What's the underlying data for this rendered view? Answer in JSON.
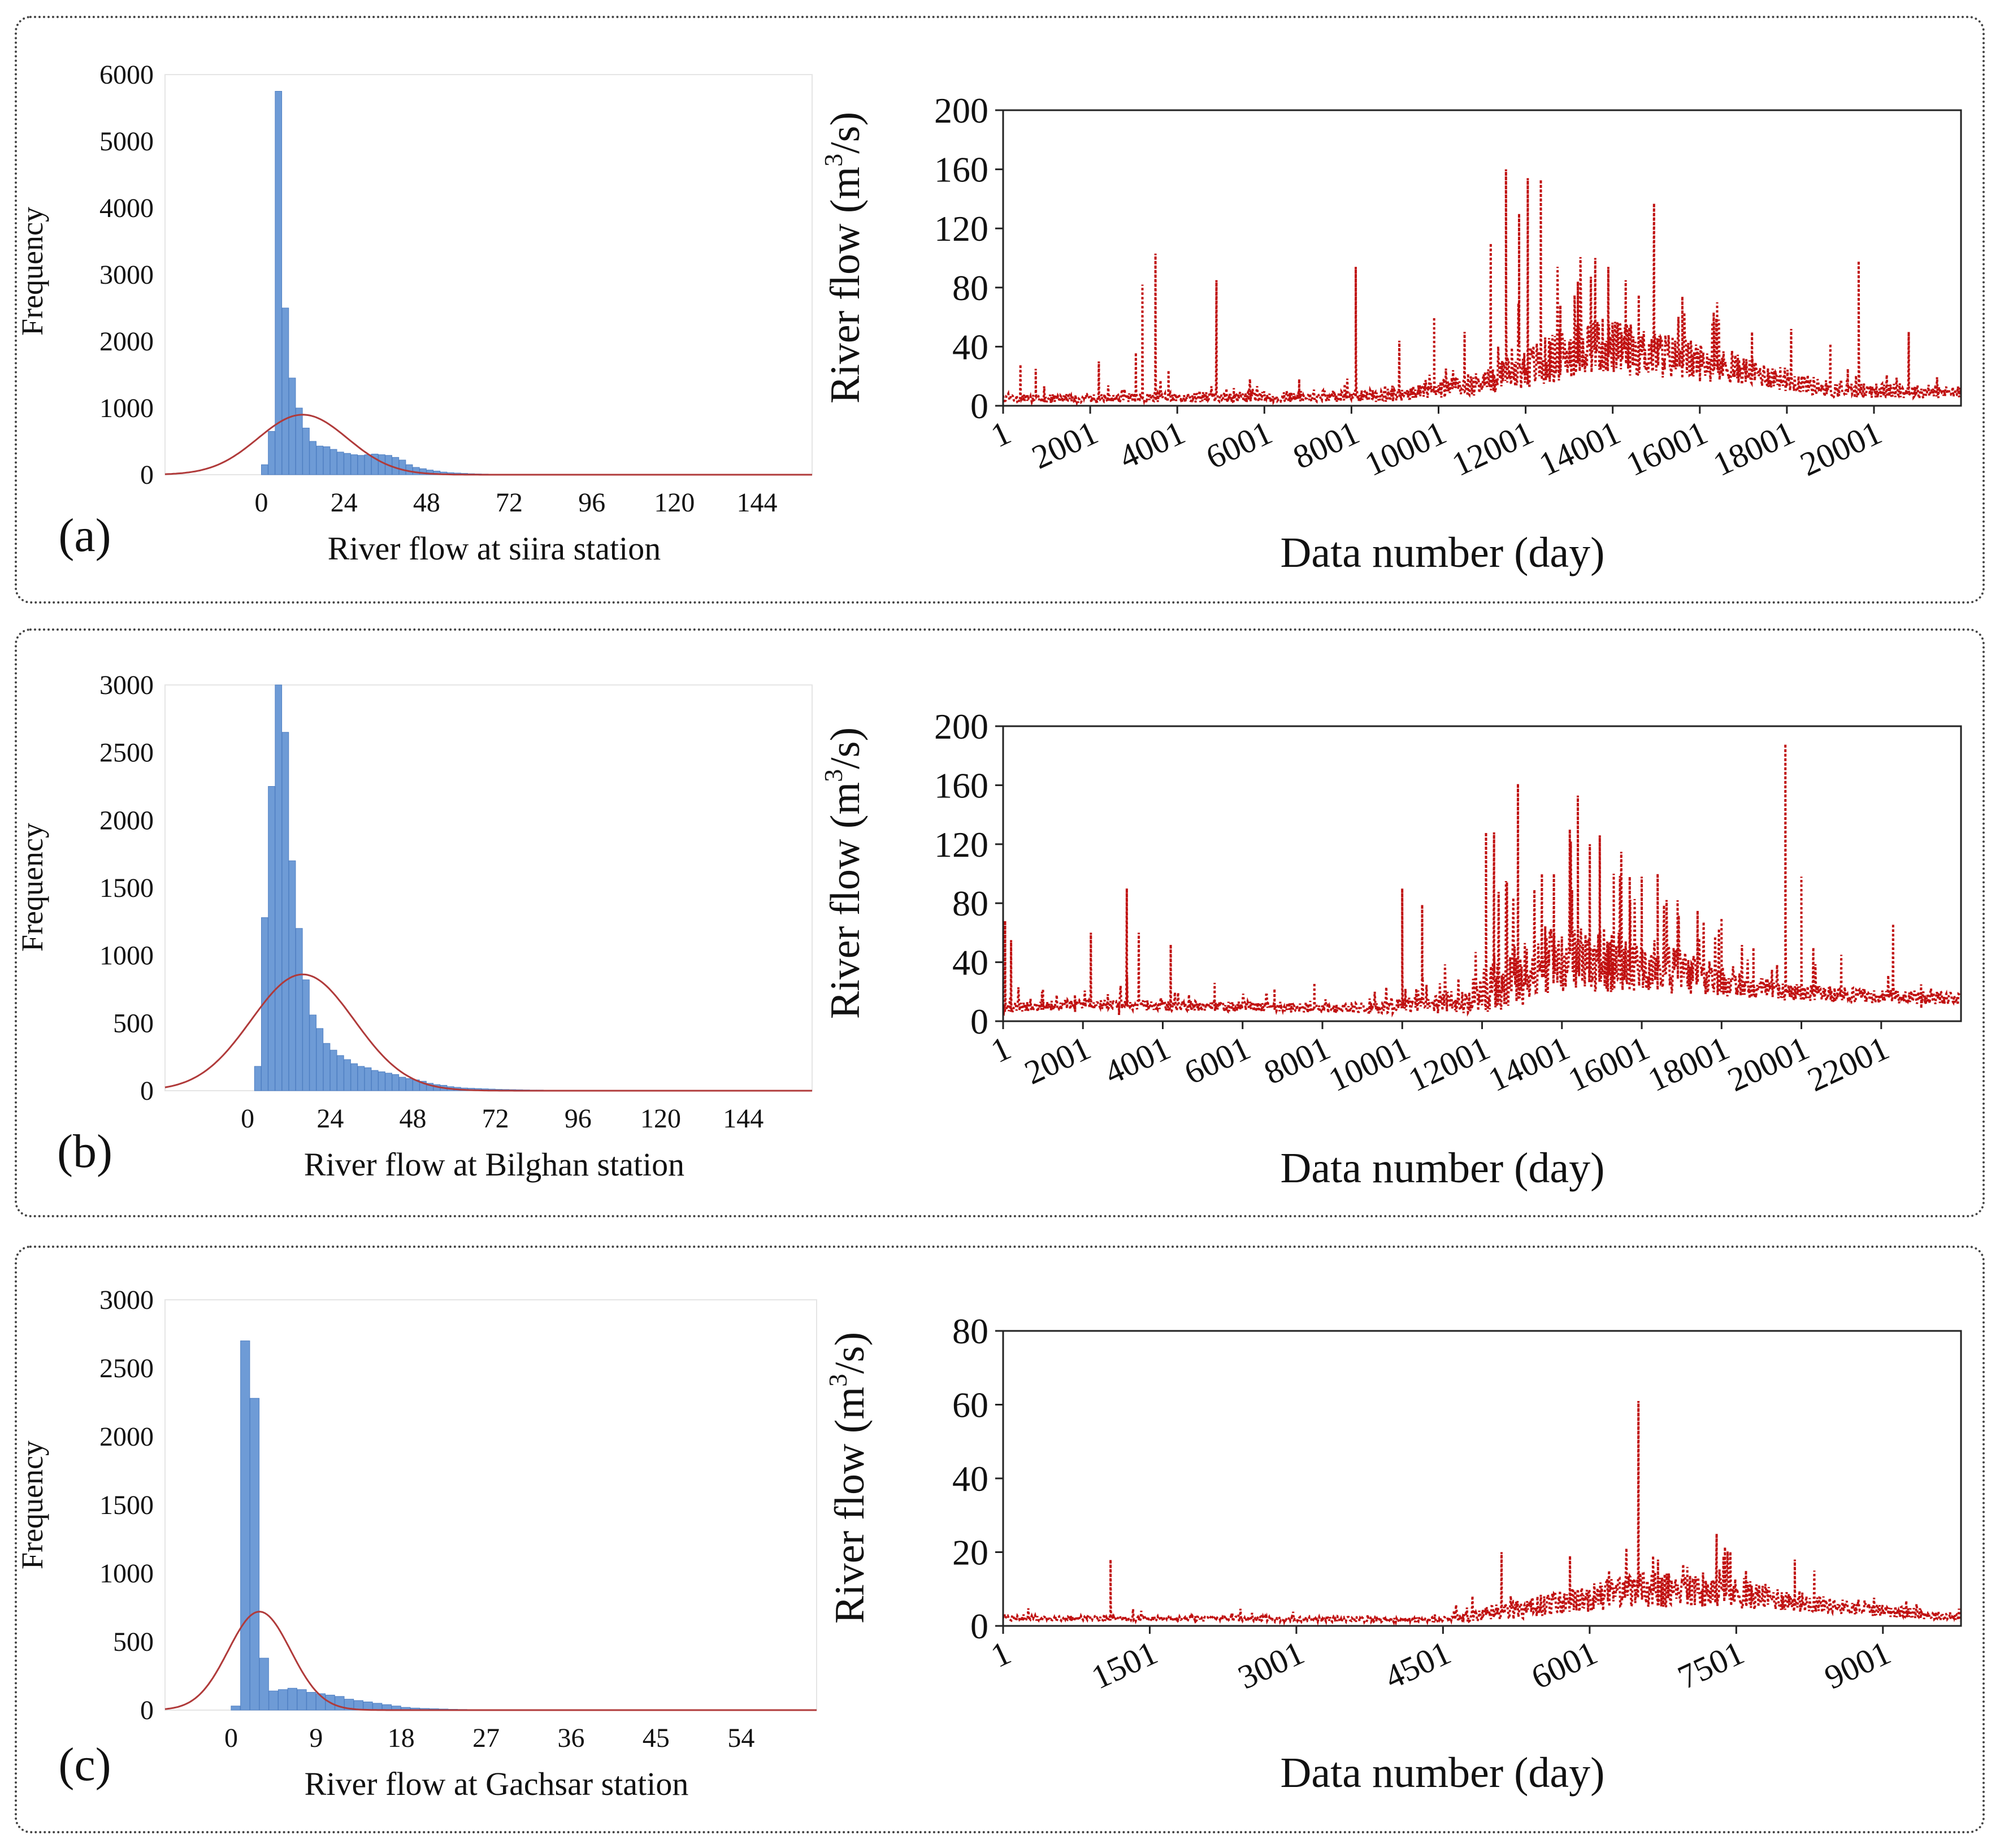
{
  "colors": {
    "bar": "#6e9bd6",
    "bar_edge": "#4f7fc2",
    "normal_curve": "#b03a3a",
    "series": "#c01010",
    "axis": "#222222",
    "grid": "#e5e5e5"
  },
  "panels": [
    {
      "label": "(a)"
    },
    {
      "label": "(b)"
    },
    {
      "label": "(c)"
    }
  ],
  "chart_data": [
    {
      "id": "hist_a",
      "type": "bar",
      "panel": "(a)",
      "chart_kind": "histogram",
      "xlabel": "River flow at siira station",
      "ylabel": "Frequency",
      "xlim": [
        -28,
        160
      ],
      "ylim": [
        0,
        6000
      ],
      "xticks": [
        0,
        24,
        48,
        72,
        96,
        120,
        144
      ],
      "yticks": [
        0,
        1000,
        2000,
        3000,
        4000,
        5000,
        6000
      ],
      "bin_width": 2,
      "bins_start": 0,
      "values": [
        150,
        650,
        5750,
        2500,
        1450,
        1000,
        700,
        500,
        430,
        420,
        380,
        340,
        320,
        300,
        290,
        300,
        310,
        300,
        290,
        260,
        220,
        150,
        110,
        90,
        70,
        55,
        40,
        30,
        25,
        20,
        15,
        12,
        10,
        8,
        6,
        5,
        4,
        3,
        3,
        2,
        2,
        2,
        1,
        1,
        1,
        1,
        1,
        1
      ],
      "normal_curve": {
        "mean": 12,
        "sd": 13,
        "peak": 900
      }
    },
    {
      "id": "ts_a",
      "type": "line",
      "panel": "(a)",
      "style": "dotted",
      "xlabel": "Data number (day)",
      "ylabel_main": "River flow (m",
      "ylabel_sup": "3",
      "ylabel_end": "/s)",
      "xlim": [
        1,
        22000
      ],
      "ylim": [
        0,
        200
      ],
      "xtick_labels": [
        "1",
        "2001",
        "4001",
        "6001",
        "8001",
        "10001",
        "12001",
        "14001",
        "16001",
        "18001",
        "20001"
      ],
      "xtick_values": [
        1,
        2001,
        4001,
        6001,
        8001,
        10001,
        12001,
        14001,
        16001,
        18001,
        20001
      ],
      "yticks": [
        0,
        40,
        80,
        120,
        160,
        200
      ],
      "n": 22000,
      "baseline": [
        [
          0,
          4
        ],
        [
          9000,
          6
        ],
        [
          11000,
          14
        ],
        [
          12000,
          22
        ],
        [
          13500,
          38
        ],
        [
          15000,
          32
        ],
        [
          17000,
          22
        ],
        [
          19000,
          10
        ],
        [
          22000,
          8
        ]
      ],
      "noise": [
        [
          0,
          4
        ],
        [
          9000,
          6
        ],
        [
          11000,
          12
        ],
        [
          12000,
          22
        ],
        [
          13500,
          28
        ],
        [
          15000,
          24
        ],
        [
          17000,
          14
        ],
        [
          19000,
          8
        ],
        [
          22000,
          6
        ]
      ],
      "peaks": [
        [
          400,
          28
        ],
        [
          750,
          25
        ],
        [
          2200,
          30
        ],
        [
          3050,
          36
        ],
        [
          3200,
          82
        ],
        [
          3500,
          103
        ],
        [
          3800,
          24
        ],
        [
          4900,
          85
        ],
        [
          5300,
          12
        ],
        [
          6800,
          18
        ],
        [
          8100,
          94
        ],
        [
          9100,
          44
        ],
        [
          9900,
          60
        ],
        [
          10600,
          50
        ],
        [
          11200,
          110
        ],
        [
          11550,
          160
        ],
        [
          11850,
          130
        ],
        [
          12050,
          154
        ],
        [
          12350,
          153
        ],
        [
          12800,
          68
        ],
        [
          13200,
          84
        ],
        [
          13600,
          100
        ],
        [
          13900,
          94
        ],
        [
          14300,
          85
        ],
        [
          14600,
          75
        ],
        [
          14950,
          137
        ],
        [
          15600,
          74
        ],
        [
          16400,
          70
        ],
        [
          17200,
          50
        ],
        [
          18100,
          52
        ],
        [
          19000,
          42
        ],
        [
          19400,
          25
        ],
        [
          19650,
          98
        ],
        [
          20300,
          18
        ],
        [
          20800,
          50
        ]
      ]
    },
    {
      "id": "hist_b",
      "type": "bar",
      "panel": "(b)",
      "chart_kind": "histogram",
      "xlabel": "River flow  at Bilghan station",
      "ylabel": "Frequency",
      "xlim": [
        -24,
        164
      ],
      "ylim": [
        0,
        3000
      ],
      "xticks": [
        0,
        24,
        48,
        72,
        96,
        120,
        144
      ],
      "yticks": [
        0,
        500,
        1000,
        1500,
        2000,
        2500,
        3000
      ],
      "bin_width": 2,
      "bins_start": 2,
      "values": [
        180,
        1280,
        2250,
        3000,
        2650,
        1700,
        1200,
        820,
        560,
        460,
        350,
        300,
        260,
        230,
        200,
        180,
        170,
        150,
        140,
        130,
        120,
        100,
        90,
        80,
        70,
        55,
        45,
        40,
        30,
        25,
        20,
        18,
        16,
        14,
        12,
        10,
        9,
        8,
        7,
        6,
        5,
        5,
        4,
        4,
        3,
        3,
        3,
        2,
        2,
        2,
        2,
        2,
        1,
        1,
        1,
        1,
        1,
        1,
        1,
        1,
        1,
        1,
        1,
        1,
        1,
        1,
        1,
        1,
        1,
        1,
        1
      ],
      "normal_curve": {
        "mean": 16,
        "sd": 15,
        "peak": 860
      }
    },
    {
      "id": "ts_b",
      "type": "line",
      "panel": "(b)",
      "style": "dotted",
      "xlabel": "Data number (day)",
      "ylabel_main": "River flow (m",
      "ylabel_sup": "3",
      "ylabel_end": "/s)",
      "xlim": [
        1,
        24000
      ],
      "ylim": [
        0,
        200
      ],
      "xtick_labels": [
        "1",
        "2001",
        "4001",
        "6001",
        "8001",
        "10001",
        "12001",
        "14001",
        "16001",
        "18001",
        "20001",
        "22001"
      ],
      "xtick_values": [
        1,
        2001,
        4001,
        6001,
        8001,
        10001,
        12001,
        14001,
        16001,
        18001,
        20001,
        22001
      ],
      "yticks": [
        0,
        40,
        80,
        120,
        160,
        200
      ],
      "n": 24000,
      "baseline": [
        [
          0,
          8
        ],
        [
          2000,
          11
        ],
        [
          4000,
          10
        ],
        [
          9000,
          8
        ],
        [
          11500,
          12
        ],
        [
          12500,
          22
        ],
        [
          14000,
          38
        ],
        [
          16000,
          35
        ],
        [
          18500,
          22
        ],
        [
          20000,
          18
        ],
        [
          24000,
          14
        ]
      ],
      "noise": [
        [
          0,
          5
        ],
        [
          9000,
          5
        ],
        [
          11500,
          12
        ],
        [
          12500,
          30
        ],
        [
          14000,
          34
        ],
        [
          16000,
          28
        ],
        [
          18500,
          12
        ],
        [
          20000,
          8
        ],
        [
          24000,
          6
        ]
      ],
      "peaks": [
        [
          50,
          68
        ],
        [
          200,
          55
        ],
        [
          1000,
          22
        ],
        [
          1800,
          18
        ],
        [
          2200,
          60
        ],
        [
          2900,
          12
        ],
        [
          3100,
          90
        ],
        [
          3400,
          60
        ],
        [
          4200,
          52
        ],
        [
          5300,
          26
        ],
        [
          6800,
          22
        ],
        [
          7800,
          26
        ],
        [
          10000,
          90
        ],
        [
          10500,
          79
        ],
        [
          12100,
          128
        ],
        [
          12300,
          128
        ],
        [
          12600,
          95
        ],
        [
          12900,
          161
        ],
        [
          13500,
          100
        ],
        [
          13800,
          100
        ],
        [
          14200,
          130
        ],
        [
          14400,
          153
        ],
        [
          14700,
          120
        ],
        [
          14950,
          126
        ],
        [
          15300,
          100
        ],
        [
          15700,
          98
        ],
        [
          16000,
          98
        ],
        [
          16400,
          100
        ],
        [
          16900,
          82
        ],
        [
          17400,
          75
        ],
        [
          18000,
          70
        ],
        [
          18800,
          50
        ],
        [
          19600,
          188
        ],
        [
          20000,
          98
        ],
        [
          20300,
          50
        ],
        [
          21000,
          45
        ],
        [
          22300,
          66
        ],
        [
          23000,
          25
        ]
      ]
    },
    {
      "id": "hist_c",
      "type": "bar",
      "panel": "(c)",
      "chart_kind": "histogram",
      "xlabel": "River flow  at Gachsar station",
      "ylabel": "Frequency",
      "xlim": [
        -7,
        62
      ],
      "ylim": [
        0,
        3000
      ],
      "xticks": [
        0,
        9,
        18,
        27,
        36,
        45,
        54
      ],
      "yticks": [
        0,
        500,
        1000,
        1500,
        2000,
        2500,
        3000
      ],
      "bin_width": 1,
      "bins_start": 0,
      "values": [
        30,
        2700,
        2280,
        380,
        140,
        150,
        160,
        150,
        130,
        120,
        110,
        100,
        80,
        70,
        60,
        50,
        40,
        30,
        20,
        15,
        12,
        10,
        8,
        6,
        5,
        4,
        4,
        3,
        3,
        2,
        2,
        2,
        1,
        1,
        1,
        1,
        1,
        1,
        1,
        1
      ],
      "normal_curve": {
        "mean": 3,
        "sd": 3.3,
        "peak": 720
      }
    },
    {
      "id": "ts_c",
      "type": "line",
      "panel": "(c)",
      "style": "dotted",
      "xlabel": "Data number (day)",
      "ylabel_main": "River flow (m",
      "ylabel_sup": "3",
      "ylabel_end": "/s)",
      "xlim": [
        1,
        9800
      ],
      "ylim": [
        0,
        80
      ],
      "xtick_labels": [
        "1",
        "1501",
        "3001",
        "4501",
        "6001",
        "7501",
        "9001"
      ],
      "xtick_values": [
        1,
        1501,
        3001,
        4501,
        6001,
        7501,
        9001
      ],
      "yticks": [
        0,
        20,
        40,
        60,
        80
      ],
      "n": 9800,
      "baseline": [
        [
          0,
          2
        ],
        [
          4500,
          1.5
        ],
        [
          5000,
          3
        ],
        [
          5800,
          6
        ],
        [
          6500,
          9
        ],
        [
          7500,
          8
        ],
        [
          8500,
          5
        ],
        [
          9800,
          2
        ]
      ],
      "noise": [
        [
          0,
          1
        ],
        [
          4500,
          1
        ],
        [
          5000,
          3
        ],
        [
          5800,
          5
        ],
        [
          6500,
          7
        ],
        [
          7500,
          6
        ],
        [
          8500,
          3
        ],
        [
          9800,
          1.5
        ]
      ],
      "peaks": [
        [
          1100,
          18
        ],
        [
          5100,
          20
        ],
        [
          5800,
          19
        ],
        [
          6200,
          15
        ],
        [
          6500,
          61
        ],
        [
          6700,
          18
        ],
        [
          7000,
          16
        ],
        [
          7300,
          25
        ],
        [
          7600,
          15
        ],
        [
          8100,
          18
        ],
        [
          8300,
          15
        ]
      ]
    }
  ]
}
